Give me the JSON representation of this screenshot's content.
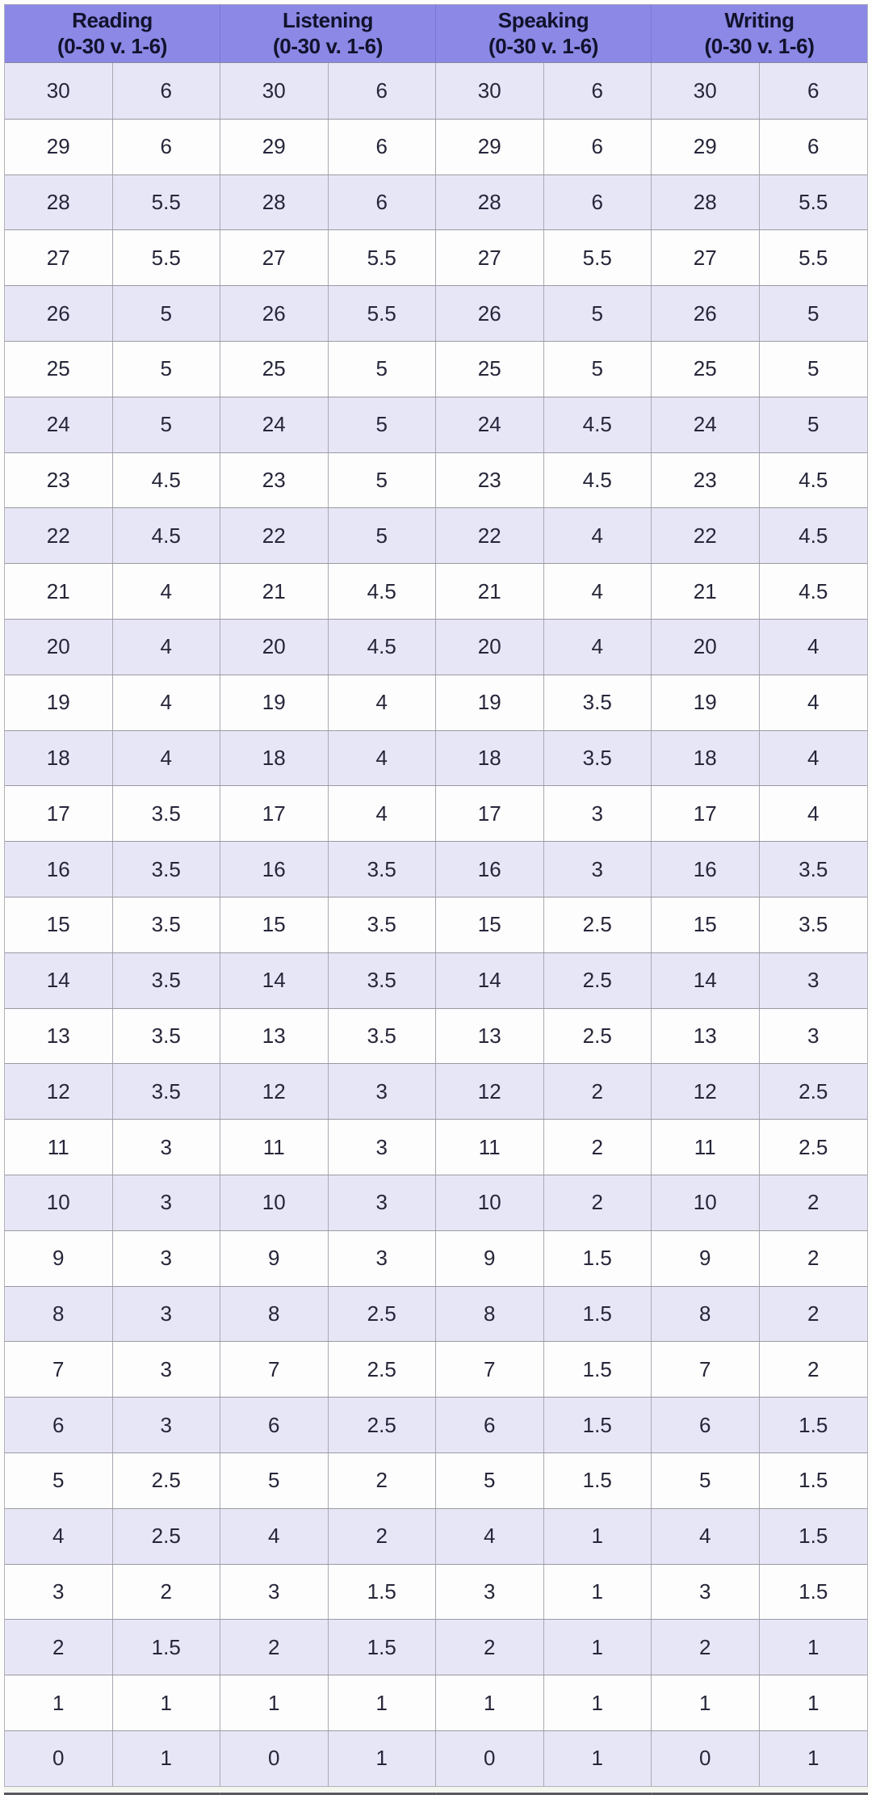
{
  "table": {
    "header": {
      "sections": [
        {
          "title": "Reading",
          "range": "(0-30 v. 1-6)"
        },
        {
          "title": "Listening",
          "range": "(0-30 v. 1-6)"
        },
        {
          "title": "Speaking",
          "range": "(0-30 v. 1-6)"
        },
        {
          "title": "Writing",
          "range": "(0-30 v. 1-6)"
        }
      ]
    },
    "rows": [
      {
        "score": "30",
        "conversions": [
          "6",
          "6",
          "6",
          "6"
        ]
      },
      {
        "score": "29",
        "conversions": [
          "6",
          "6",
          "6",
          "6"
        ]
      },
      {
        "score": "28",
        "conversions": [
          "5.5",
          "6",
          "6",
          "5.5"
        ]
      },
      {
        "score": "27",
        "conversions": [
          "5.5",
          "5.5",
          "5.5",
          "5.5"
        ]
      },
      {
        "score": "26",
        "conversions": [
          "5",
          "5.5",
          "5",
          "5"
        ]
      },
      {
        "score": "25",
        "conversions": [
          "5",
          "5",
          "5",
          "5"
        ]
      },
      {
        "score": "24",
        "conversions": [
          "5",
          "5",
          "4.5",
          "5"
        ]
      },
      {
        "score": "23",
        "conversions": [
          "4.5",
          "5",
          "4.5",
          "4.5"
        ]
      },
      {
        "score": "22",
        "conversions": [
          "4.5",
          "5",
          "4",
          "4.5"
        ]
      },
      {
        "score": "21",
        "conversions": [
          "4",
          "4.5",
          "4",
          "4.5"
        ]
      },
      {
        "score": "20",
        "conversions": [
          "4",
          "4.5",
          "4",
          "4"
        ]
      },
      {
        "score": "19",
        "conversions": [
          "4",
          "4",
          "3.5",
          "4"
        ]
      },
      {
        "score": "18",
        "conversions": [
          "4",
          "4",
          "3.5",
          "4"
        ]
      },
      {
        "score": "17",
        "conversions": [
          "3.5",
          "4",
          "3",
          "4"
        ]
      },
      {
        "score": "16",
        "conversions": [
          "3.5",
          "3.5",
          "3",
          "3.5"
        ]
      },
      {
        "score": "15",
        "conversions": [
          "3.5",
          "3.5",
          "2.5",
          "3.5"
        ]
      },
      {
        "score": "14",
        "conversions": [
          "3.5",
          "3.5",
          "2.5",
          "3"
        ]
      },
      {
        "score": "13",
        "conversions": [
          "3.5",
          "3.5",
          "2.5",
          "3"
        ]
      },
      {
        "score": "12",
        "conversions": [
          "3.5",
          "3",
          "2",
          "2.5"
        ]
      },
      {
        "score": "11",
        "conversions": [
          "3",
          "3",
          "2",
          "2.5"
        ]
      },
      {
        "score": "10",
        "conversions": [
          "3",
          "3",
          "2",
          "2"
        ]
      },
      {
        "score": "9",
        "conversions": [
          "3",
          "3",
          "1.5",
          "2"
        ]
      },
      {
        "score": "8",
        "conversions": [
          "3",
          "2.5",
          "1.5",
          "2"
        ]
      },
      {
        "score": "7",
        "conversions": [
          "3",
          "2.5",
          "1.5",
          "2"
        ]
      },
      {
        "score": "6",
        "conversions": [
          "3",
          "2.5",
          "1.5",
          "1.5"
        ]
      },
      {
        "score": "5",
        "conversions": [
          "2.5",
          "2",
          "1.5",
          "1.5"
        ]
      },
      {
        "score": "4",
        "conversions": [
          "2.5",
          "2",
          "1",
          "1.5"
        ]
      },
      {
        "score": "3",
        "conversions": [
          "2",
          "1.5",
          "1",
          "1.5"
        ]
      },
      {
        "score": "2",
        "conversions": [
          "1.5",
          "1.5",
          "1",
          "1"
        ]
      },
      {
        "score": "1",
        "conversions": [
          "1",
          "1",
          "1",
          "1"
        ]
      },
      {
        "score": "0",
        "conversions": [
          "1",
          "1",
          "1",
          "1"
        ]
      }
    ]
  },
  "colors": {
    "header_bg": "#8b88e6",
    "header_text": "#12122c",
    "row_alt_bg": "#e7e6f7",
    "row_bg": "#fdfdfd",
    "border": "#9a9aa2",
    "body_text": "#26263a",
    "footer_bar": "#585860"
  }
}
